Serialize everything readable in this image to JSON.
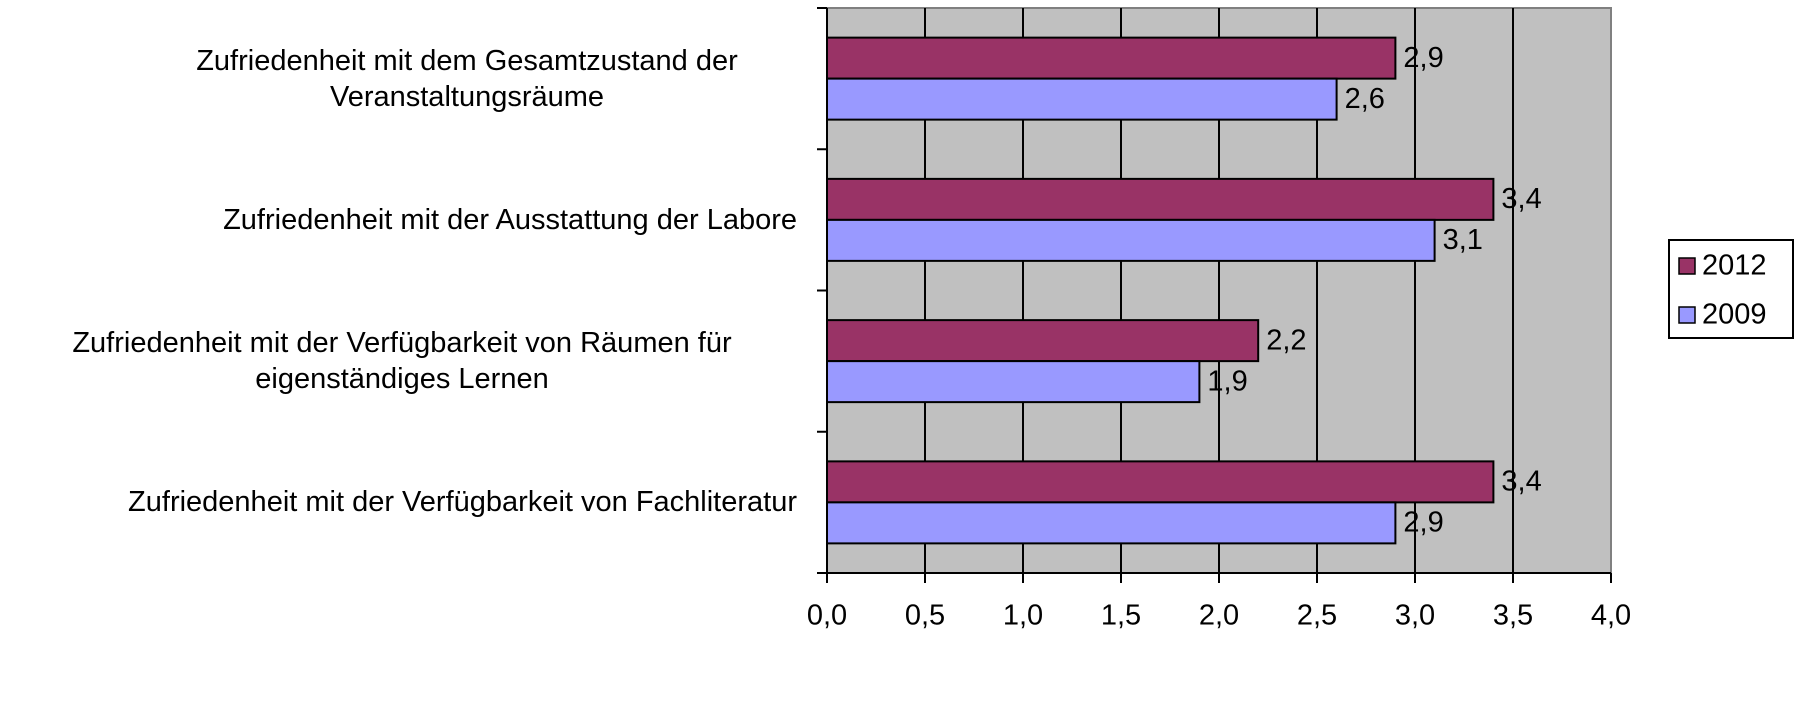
{
  "chart_data": {
    "type": "barh",
    "categories": [
      "Zufriedenheit mit dem Gesamtzustand der Veranstaltungsräume",
      "Zufriedenheit mit der Ausstattung der Labore",
      "Zufriedenheit mit der Verfügbarkeit von Räumen für eigenständiges Lernen",
      "Zufriedenheit mit der Verfügbarkeit von Fachliteratur"
    ],
    "series": [
      {
        "name": "2012",
        "color": "#993366",
        "values": [
          2.9,
          3.4,
          2.2,
          3.4
        ],
        "value_labels": [
          "2,9",
          "3,4",
          "2,2",
          "3,4"
        ]
      },
      {
        "name": "2009",
        "color": "#9999ff",
        "values": [
          2.6,
          3.1,
          1.9,
          2.9
        ],
        "value_labels": [
          "2,6",
          "3,1",
          "1,9",
          "2,9"
        ]
      }
    ],
    "xlim": [
      0,
      4
    ],
    "xticks": [
      {
        "value": 0,
        "label": "0,0"
      },
      {
        "value": 0.5,
        "label": "0,5"
      },
      {
        "value": 1,
        "label": "1,0"
      },
      {
        "value": 1.5,
        "label": "1,5"
      },
      {
        "value": 2,
        "label": "2,0"
      },
      {
        "value": 2.5,
        "label": "2,5"
      },
      {
        "value": 3,
        "label": "3,0"
      },
      {
        "value": 3.5,
        "label": "3,5"
      },
      {
        "value": 4,
        "label": "4,0"
      }
    ],
    "grid": true,
    "legend": "right"
  }
}
